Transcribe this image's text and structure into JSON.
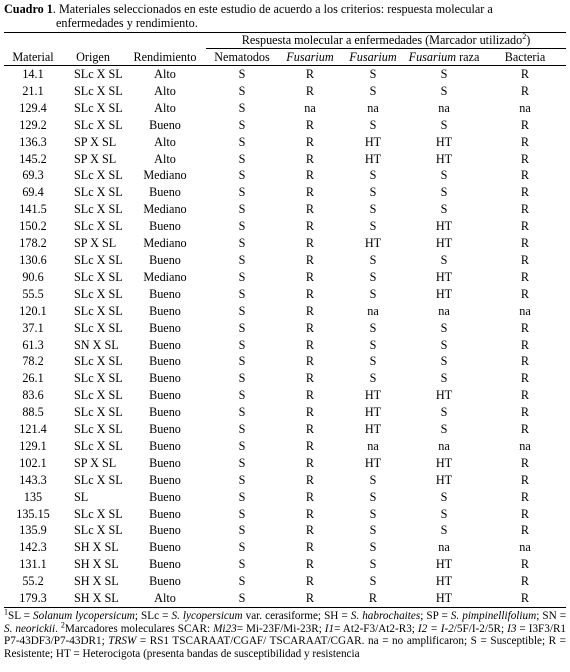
{
  "caption": {
    "label": "Cuadro 1",
    "text_line1": ". Materiales seleccionados en este estudio de acuerdo a los criterios: respuesta molecular a",
    "text_line2": "enfermedades y rendimiento."
  },
  "headers": {
    "group": "Respuesta molecular a enfermedades (Marcador utilizado",
    "group_sup": "2",
    "group_close": ")",
    "material": "Material",
    "origen": "Origen",
    "rendimiento": "Rendimiento",
    "nematodos": "Nematodos",
    "fusarium1": "Fusarium",
    "fusarium2": "Fusarium",
    "fusarium_raza_it": "Fusarium",
    "fusarium_raza_rest": " raza",
    "bacteria": "Bacteria"
  },
  "rows": [
    [
      "14.1",
      "SLc X SL",
      "Alto",
      "S",
      "R",
      "S",
      "S",
      "R"
    ],
    [
      "21.1",
      "SLc X SL",
      "Alto",
      "S",
      "R",
      "S",
      "S",
      "R"
    ],
    [
      "129.4",
      "SLc X SL",
      "Alto",
      "S",
      "na",
      "na",
      "na",
      "na"
    ],
    [
      "129.2",
      "SLc X SL",
      "Bueno",
      "S",
      "R",
      "S",
      "S",
      "R"
    ],
    [
      "136.3",
      "SP X SL",
      "Alto",
      "S",
      "R",
      "HT",
      "HT",
      "R"
    ],
    [
      "145.2",
      "SP X SL",
      "Alto",
      "S",
      "R",
      "HT",
      "HT",
      "R"
    ],
    [
      "69.3",
      "SLc X SL",
      "Mediano",
      "S",
      "R",
      "S",
      "S",
      "R"
    ],
    [
      "69.4",
      "SLc X SL",
      "Bueno",
      "S",
      "R",
      "S",
      "S",
      "R"
    ],
    [
      "141.5",
      "SLc X SL",
      "Mediano",
      "S",
      "R",
      "S",
      "S",
      "R"
    ],
    [
      "150.2",
      "SLc X SL",
      "Bueno",
      "S",
      "R",
      "S",
      "HT",
      "R"
    ],
    [
      "178.2",
      "SP X SL",
      "Mediano",
      "S",
      "R",
      "HT",
      "HT",
      "R"
    ],
    [
      "130.6",
      "SLc X SL",
      "Bueno",
      "S",
      "R",
      "S",
      "S",
      "R"
    ],
    [
      "90.6",
      "SLc X SL",
      "Mediano",
      "S",
      "R",
      "S",
      "HT",
      "R"
    ],
    [
      "55.5",
      "SLc X SL",
      "Bueno",
      "S",
      "R",
      "S",
      "HT",
      "R"
    ],
    [
      "120.1",
      "SLc X SL",
      "Bueno",
      "S",
      "R",
      "na",
      "na",
      "na"
    ],
    [
      "37.1",
      "SLc X SL",
      "Bueno",
      "S",
      "R",
      "S",
      "S",
      "R"
    ],
    [
      "61.3",
      "SN X SL",
      "Bueno",
      "S",
      "R",
      "S",
      "S",
      "R"
    ],
    [
      "78.2",
      "SLc X SL",
      "Bueno",
      "S",
      "R",
      "S",
      "S",
      "R"
    ],
    [
      "26.1",
      "SLc X SL",
      "Bueno",
      "S",
      "R",
      "S",
      "S",
      "R"
    ],
    [
      "83.6",
      "SLc X SL",
      "Bueno",
      "S",
      "R",
      "HT",
      "HT",
      "R"
    ],
    [
      "88.5",
      "SLc X SL",
      "Bueno",
      "S",
      "R",
      "HT",
      "S",
      "R"
    ],
    [
      "121.4",
      "SLc X SL",
      "Bueno",
      "S",
      "R",
      "HT",
      "S",
      "R"
    ],
    [
      "129.1",
      "SLc X SL",
      "Bueno",
      "S",
      "R",
      "na",
      "na",
      "na"
    ],
    [
      "102.1",
      "SP X SL",
      "Bueno",
      "S",
      "R",
      "HT",
      "HT",
      "R"
    ],
    [
      "143.3",
      "SLc X SL",
      "Bueno",
      "S",
      "R",
      "S",
      "HT",
      "R"
    ],
    [
      "135",
      "SL",
      "Bueno",
      "S",
      "R",
      "S",
      "S",
      "R"
    ],
    [
      "135.15",
      "SLc X SL",
      "Bueno",
      "S",
      "R",
      "S",
      "S",
      "R"
    ],
    [
      "135.9",
      "SLc X SL",
      "Bueno",
      "S",
      "R",
      "S",
      "S",
      "R"
    ],
    [
      "142.3",
      "SH X SL",
      "Bueno",
      "S",
      "R",
      "S",
      "na",
      "na"
    ],
    [
      "131.1",
      "SH X SL",
      "Bueno",
      "S",
      "R",
      "S",
      "HT",
      "R"
    ],
    [
      "55.2",
      "SH X SL",
      "Bueno",
      "S",
      "R",
      "S",
      "HT",
      "R"
    ],
    [
      "179.3",
      "SH X SL",
      "Alto",
      "S",
      "R",
      "R",
      "HT",
      "R"
    ]
  ],
  "footnote": {
    "sup1": "1",
    "a": "SL = ",
    "a_it": "Solanum lycopersicum",
    "b": "; SLc = ",
    "b_it": "S. lycopersicum",
    "c": " var. cerasiforme; SH = ",
    "c_it": "S. habrochaites",
    "d": "; SP = ",
    "d_it": "S. pimpinellifolium",
    "e": "; SN = ",
    "e_it": "S. neorickii",
    "f": ". ",
    "sup2": "2",
    "g": "Marcadores moleculares SCAR: ",
    "g_it": "Mi23",
    "h": "= Mi-23F/Mi-23R; ",
    "h_it": "I1",
    "i": "= At2-F3/At2-R3; ",
    "i_it": "I2 = I-2",
    "j": "/5F/I-2/5R; ",
    "j_it": "I3",
    "k": " = I3F3/R1 P7-43DF3/P7-43DR1; ",
    "k_it": "TRSW",
    "l": " = RS1 TSCARAAT/CGAF/ TSCARAAT/CGAR.  na = no amplificaron; S = Susceptible; R = Resistente; HT = Heterocigota (presenta bandas de susceptibilidad y resistencia"
  }
}
